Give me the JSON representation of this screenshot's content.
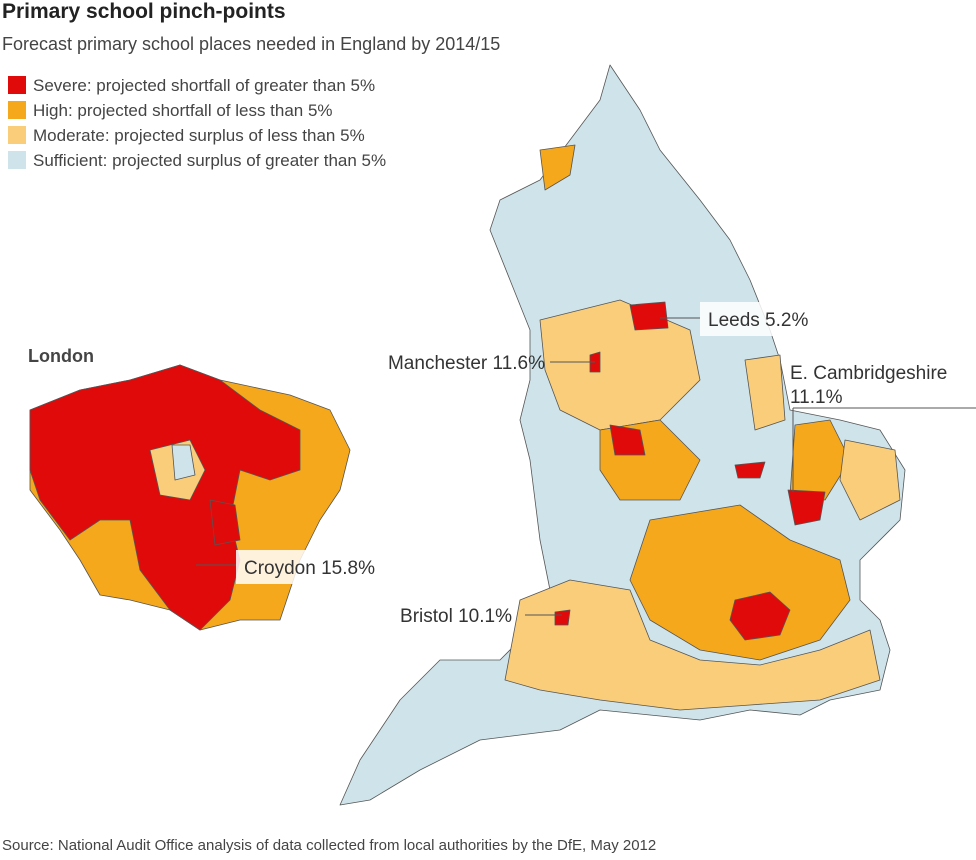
{
  "header": {
    "title": "Primary school pinch-points",
    "subtitle": "Forecast primary school places needed in England by 2014/15"
  },
  "legend": [
    {
      "label": "Severe: projected shortfall of greater than 5%",
      "color": "#e00a0a"
    },
    {
      "label": "High: projected shortfall of less than 5%",
      "color": "#f5a81c"
    },
    {
      "label": "Moderate: projected surplus of less than 5%",
      "color": "#f9cd7a"
    },
    {
      "label": "Sufficient: projected surplus of greater than 5%",
      "color": "#cfe4ea"
    }
  ],
  "inset": {
    "title": "London"
  },
  "callouts": [
    "Leeds 5.2%",
    "Manchester 11.6%",
    "E. Cambridgeshire\n11.1%",
    "Croydon 15.8%",
    "Bristol 10.1%"
  ],
  "source": "Source: National Audit Office analysis of data collected from local authorities by the DfE, May 2012"
}
